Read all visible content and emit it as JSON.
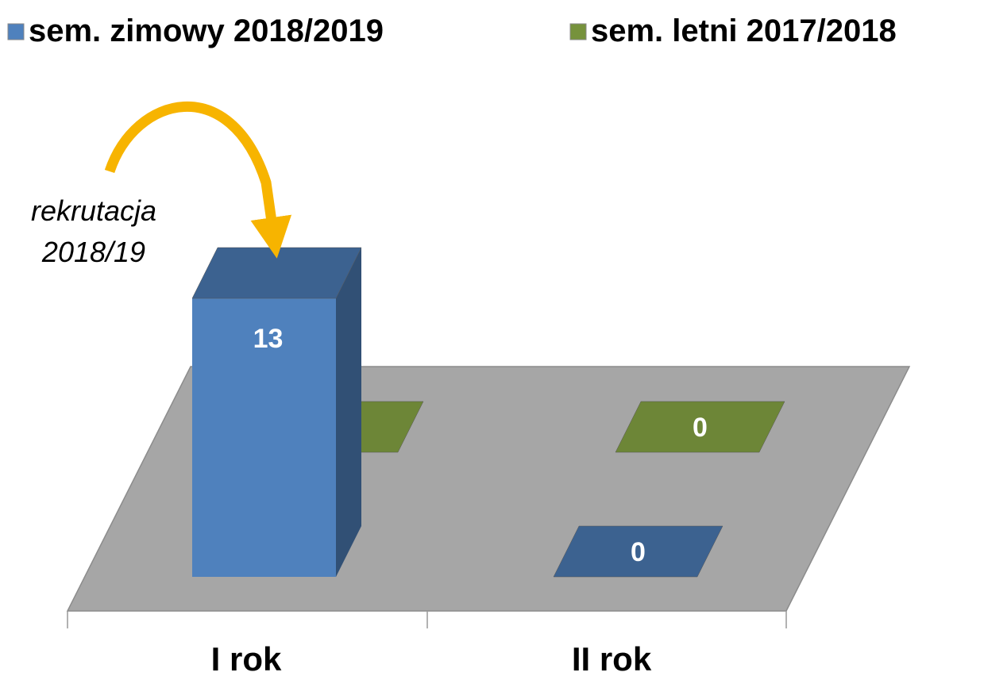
{
  "chart_data": {
    "type": "bar3d",
    "categories": [
      "I rok",
      "II rok"
    ],
    "series": [
      {
        "name": "sem. zimowy 2018/2019",
        "color": "#4f81bd",
        "values": [
          13,
          0
        ]
      },
      {
        "name": "sem. letni 2017/2018",
        "color": "#76923c",
        "values": [
          0,
          0
        ]
      }
    ],
    "annotation": [
      "rekrutacja",
      "2018/19"
    ],
    "legend": "top"
  }
}
